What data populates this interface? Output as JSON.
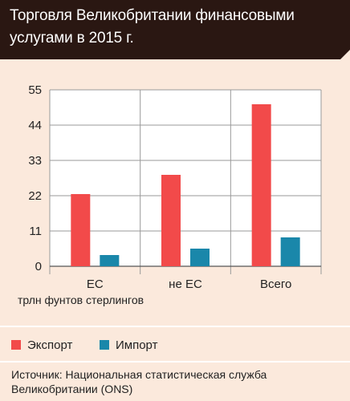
{
  "header": {
    "title": "Торговля Великобритании финансовыми услугами в 2015 г."
  },
  "chart_data": {
    "type": "bar",
    "title": "Торговля Великобритании финансовыми услугами в 2015 г.",
    "categories": [
      "ЕС",
      "не ЕС",
      "Всего"
    ],
    "series": [
      {
        "name": "Экспорт",
        "values": [
          22.5,
          28.5,
          50.5
        ],
        "color": "#f24a4a"
      },
      {
        "name": "Импорт",
        "values": [
          3.5,
          5.5,
          9.0
        ],
        "color": "#1a87aa"
      }
    ],
    "yticks": [
      0,
      11,
      22,
      33,
      44,
      55
    ],
    "ylim": [
      0,
      55
    ],
    "ylabel": "трлн фунтов стерлингов",
    "xlabel": "",
    "grid": true,
    "legend": "bottom"
  },
  "unit_label": "трлн фунтов стерлингов",
  "legend": {
    "items": [
      {
        "label": "Экспорт",
        "color": "#f24a4a"
      },
      {
        "label": "Импорт",
        "color": "#1a87aa"
      }
    ]
  },
  "source": {
    "text": "Источник: Национальная статистическая служба Великобритании (ONS)"
  }
}
